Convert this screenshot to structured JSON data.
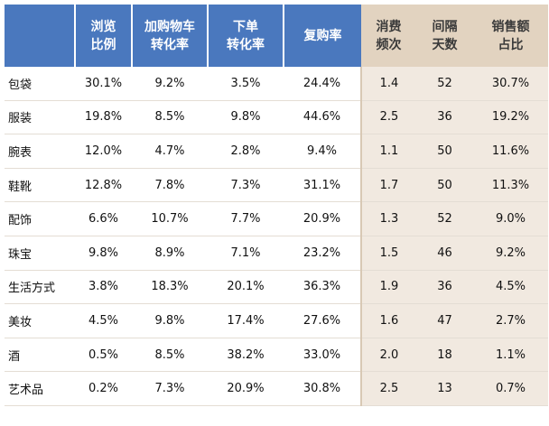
{
  "table": {
    "headers": [
      "",
      "浏览\n比例",
      "加购物车\n转化率",
      "下单\n转化率",
      "复购率",
      "消费\n频次",
      "间隔\n天数",
      "销售额\n占比"
    ],
    "rows": [
      [
        "包袋",
        "30.1%",
        "9.2%",
        "3.5%",
        "24.4%",
        "1.4",
        "52",
        "30.7%"
      ],
      [
        "服装",
        "19.8%",
        "8.5%",
        "9.8%",
        "44.6%",
        "2.5",
        "36",
        "19.2%"
      ],
      [
        "腕表",
        "12.0%",
        "4.7%",
        "2.8%",
        "9.4%",
        "1.1",
        "50",
        "11.6%"
      ],
      [
        "鞋靴",
        "12.8%",
        "7.8%",
        "7.3%",
        "31.1%",
        "1.7",
        "50",
        "11.3%"
      ],
      [
        "配饰",
        "6.6%",
        "10.7%",
        "7.7%",
        "20.9%",
        "1.3",
        "52",
        "9.0%"
      ],
      [
        "珠宝",
        "9.8%",
        "8.9%",
        "7.1%",
        "23.2%",
        "1.5",
        "46",
        "9.2%"
      ],
      [
        "生活方式",
        "3.8%",
        "18.3%",
        "20.1%",
        "36.3%",
        "1.9",
        "36",
        "4.5%"
      ],
      [
        "美妆",
        "4.5%",
        "9.8%",
        "17.4%",
        "27.6%",
        "1.6",
        "47",
        "2.7%"
      ],
      [
        "酒",
        "0.5%",
        "8.5%",
        "38.2%",
        "33.0%",
        "2.0",
        "18",
        "1.1%"
      ],
      [
        "艺术品",
        "0.2%",
        "7.3%",
        "20.9%",
        "30.8%",
        "2.5",
        "13",
        "0.7%"
      ]
    ]
  },
  "colors": {
    "header_blue": "#4a78be",
    "header_tan": "#e2d3c0",
    "body_tan": "#f1e9e0"
  }
}
